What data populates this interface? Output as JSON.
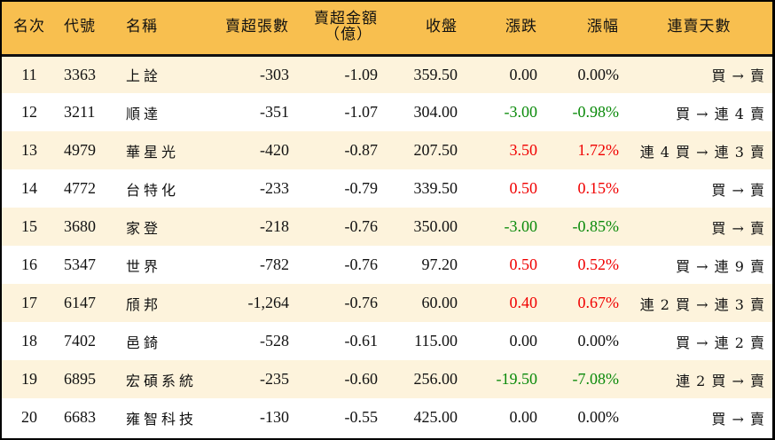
{
  "colors": {
    "header_bg": "#f8bf4f",
    "row_odd_bg": "#fdf3dc",
    "row_even_bg": "#ffffff",
    "up": "#f00000",
    "down": "#0a8a0a",
    "flat": "#111111"
  },
  "table": {
    "headers": {
      "rank": "名次",
      "code": "代號",
      "name": "名稱",
      "sell_volume": "賣超張數",
      "sell_amount_line1": "賣超金額",
      "sell_amount_line2": "（億）",
      "close": "收盤",
      "change": "漲跌",
      "change_pct": "漲幅",
      "streak": "連賣天數"
    },
    "rows": [
      {
        "rank": "11",
        "code": "3363",
        "name": "上詮",
        "sell_volume": "-303",
        "sell_amount": "-1.09",
        "close": "359.50",
        "change": "0.00",
        "change_pct": "0.00%",
        "direction": "flat",
        "streak": "買 → 賣"
      },
      {
        "rank": "12",
        "code": "3211",
        "name": "順達",
        "sell_volume": "-351",
        "sell_amount": "-1.07",
        "close": "304.00",
        "change": "-3.00",
        "change_pct": "-0.98%",
        "direction": "down",
        "streak": "買 → 連 4 賣"
      },
      {
        "rank": "13",
        "code": "4979",
        "name": "華星光",
        "sell_volume": "-420",
        "sell_amount": "-0.87",
        "close": "207.50",
        "change": "3.50",
        "change_pct": "1.72%",
        "direction": "up",
        "streak": "連 4 買 → 連 3 賣"
      },
      {
        "rank": "14",
        "code": "4772",
        "name": "台特化",
        "sell_volume": "-233",
        "sell_amount": "-0.79",
        "close": "339.50",
        "change": "0.50",
        "change_pct": "0.15%",
        "direction": "up",
        "streak": "買 → 賣"
      },
      {
        "rank": "15",
        "code": "3680",
        "name": "家登",
        "sell_volume": "-218",
        "sell_amount": "-0.76",
        "close": "350.00",
        "change": "-3.00",
        "change_pct": "-0.85%",
        "direction": "down",
        "streak": "買 → 賣"
      },
      {
        "rank": "16",
        "code": "5347",
        "name": "世界",
        "sell_volume": "-782",
        "sell_amount": "-0.76",
        "close": "97.20",
        "change": "0.50",
        "change_pct": "0.52%",
        "direction": "up",
        "streak": "買 → 連 9 賣"
      },
      {
        "rank": "17",
        "code": "6147",
        "name": "頎邦",
        "sell_volume": "-1,264",
        "sell_amount": "-0.76",
        "close": "60.00",
        "change": "0.40",
        "change_pct": "0.67%",
        "direction": "up",
        "streak": "連 2 買 → 連 3 賣"
      },
      {
        "rank": "18",
        "code": "7402",
        "name": "邑錡",
        "sell_volume": "-528",
        "sell_amount": "-0.61",
        "close": "115.00",
        "change": "0.00",
        "change_pct": "0.00%",
        "direction": "flat",
        "streak": "買 → 連 2 賣"
      },
      {
        "rank": "19",
        "code": "6895",
        "name": "宏碩系統",
        "sell_volume": "-235",
        "sell_amount": "-0.60",
        "close": "256.00",
        "change": "-19.50",
        "change_pct": "-7.08%",
        "direction": "down",
        "streak": "連 2 買 → 賣"
      },
      {
        "rank": "20",
        "code": "6683",
        "name": "雍智科技",
        "sell_volume": "-130",
        "sell_amount": "-0.55",
        "close": "425.00",
        "change": "0.00",
        "change_pct": "0.00%",
        "direction": "flat",
        "streak": "買 → 賣"
      }
    ]
  }
}
